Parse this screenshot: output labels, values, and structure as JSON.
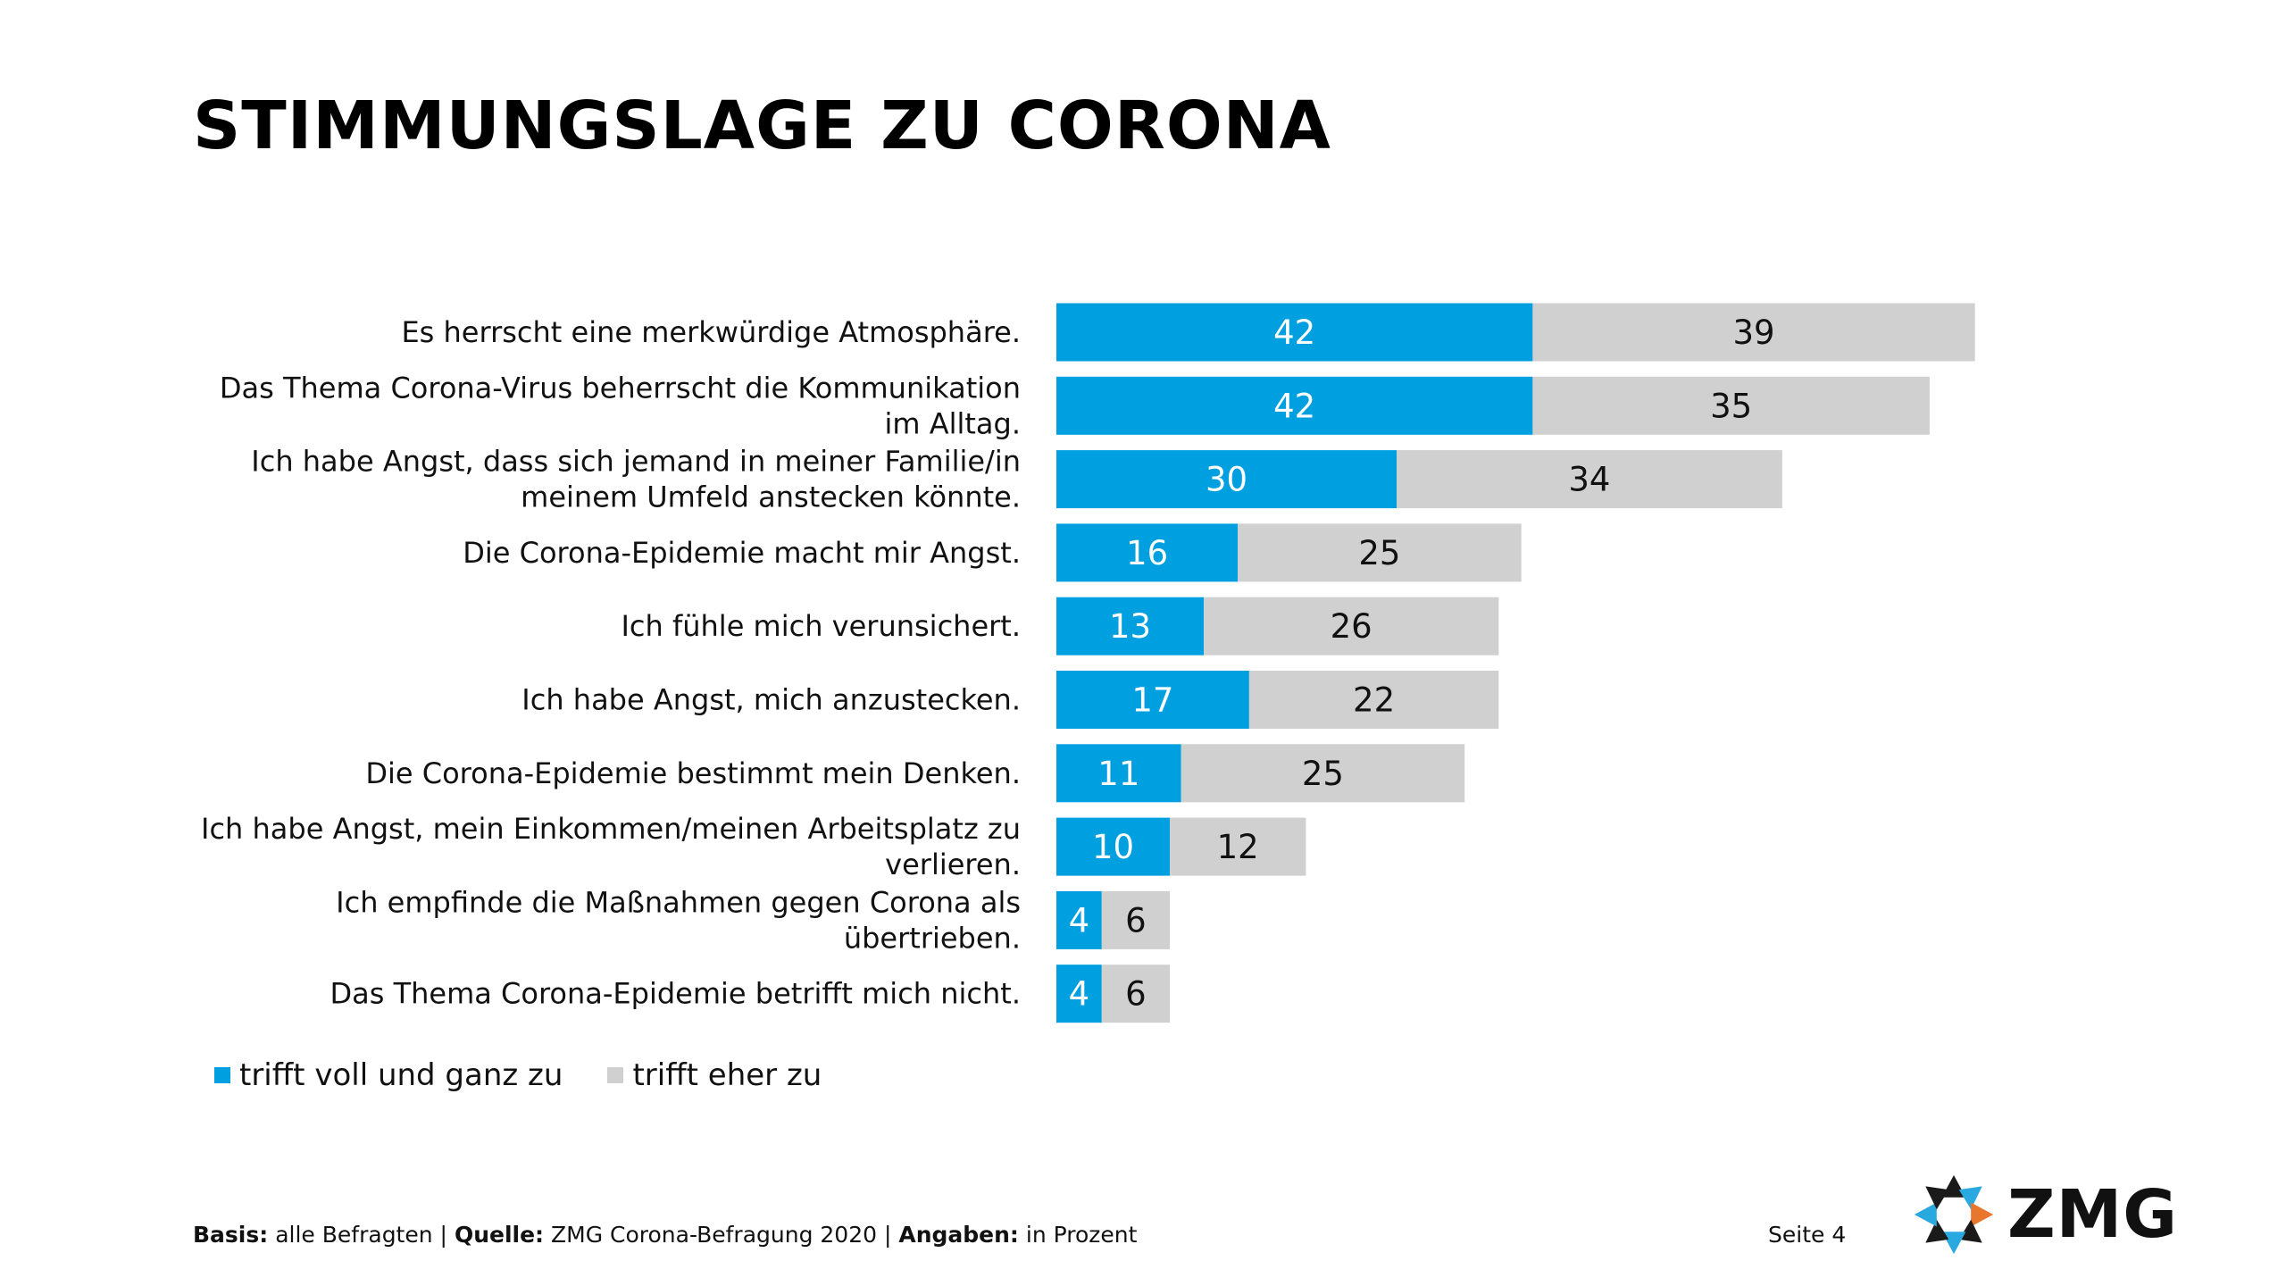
{
  "page": {
    "title": "STIMMUNGSLAGE ZU CORONA",
    "page_number": "Seite 4"
  },
  "footer": {
    "basis_label": "Basis:",
    "basis_value": "alle Befragten",
    "sep": "|",
    "quelle_label": "Quelle:",
    "quelle_value": "ZMG Corona-Befragung 2020",
    "angaben_label": "Angaben:",
    "angaben_value": "in Prozent"
  },
  "logo": {
    "text": "ZMG"
  },
  "colors": {
    "series1": "#009fdf",
    "series2": "#d0d0d0",
    "label_on_series1": "#ffffff",
    "label_on_series2": "#111111"
  },
  "chart_data": {
    "type": "bar",
    "orientation": "horizontal",
    "stacked": true,
    "unit": "percent",
    "categories": [
      [
        "Es herrscht eine merkwürdige Atmosphäre."
      ],
      [
        "Das Thema Corona-Virus beherrscht die Kommunikation",
        "im Alltag."
      ],
      [
        "Ich habe Angst, dass sich jemand in meiner Familie/in",
        "meinem Umfeld anstecken könnte."
      ],
      [
        "Die Corona-Epidemie macht mir Angst."
      ],
      [
        "Ich fühle mich verunsichert."
      ],
      [
        "Ich habe Angst, mich anzustecken."
      ],
      [
        "Die Corona-Epidemie bestimmt mein Denken."
      ],
      [
        "Ich habe Angst, mein Einkommen/meinen Arbeitsplatz zu",
        "verlieren."
      ],
      [
        "Ich empfinde die Maßnahmen gegen Corona als",
        "übertrieben."
      ],
      [
        "Das Thema Corona-Epidemie betrifft mich nicht."
      ]
    ],
    "series": [
      {
        "name": "trifft voll und ganz zu",
        "values": [
          42,
          42,
          30,
          16,
          13,
          17,
          11,
          10,
          4,
          4
        ]
      },
      {
        "name": "trifft eher zu",
        "values": [
          39,
          35,
          34,
          25,
          26,
          22,
          25,
          12,
          6,
          6
        ]
      }
    ],
    "xlim": [
      0,
      100
    ],
    "grid": false,
    "legend_position": "bottom-left"
  }
}
